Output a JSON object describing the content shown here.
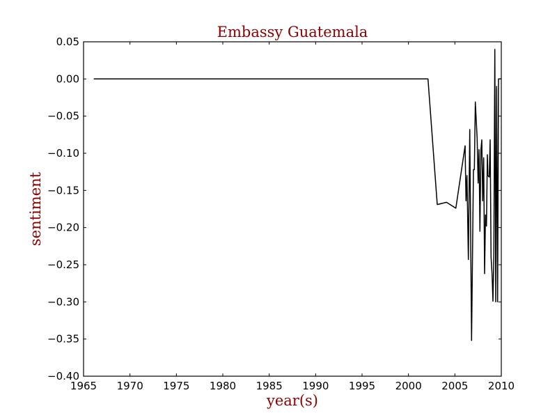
{
  "colors": {
    "title": "#8b0000",
    "axis_label": "#8b0000",
    "line": "#000000",
    "axes": "#000000",
    "background": "#ffffff"
  },
  "chart_data": {
    "type": "line",
    "title": "Embassy Guatemala",
    "xlabel": "year(s)",
    "ylabel": "sentiment",
    "xlim": [
      1965,
      2010
    ],
    "ylim": [
      -0.4,
      0.05
    ],
    "grid": false,
    "x_ticks": [
      1965,
      1970,
      1975,
      1980,
      1985,
      1990,
      1995,
      2000,
      2005,
      2010
    ],
    "x_tick_labels": [
      "1965",
      "1970",
      "1975",
      "1980",
      "1985",
      "1990",
      "1995",
      "2000",
      "2005",
      "2010"
    ],
    "y_ticks": [
      0.05,
      0.0,
      -0.05,
      -0.1,
      -0.15,
      -0.2,
      -0.25,
      -0.3,
      -0.35,
      -0.4
    ],
    "y_tick_labels": [
      "0.05",
      "0.00",
      "−0.05",
      "−0.10",
      "−0.15",
      "−0.20",
      "−0.25",
      "−0.30",
      "−0.35",
      "−0.40"
    ],
    "series": [
      {
        "x": [
          1966.1,
          2002.1,
          2003.1,
          2004.1,
          2005.1,
          2006.1,
          2006.2,
          2006.3,
          2006.45,
          2006.6,
          2006.8,
          2007.0,
          2007.1,
          2007.2,
          2007.4,
          2007.5,
          2007.6,
          2007.7,
          2007.8,
          2007.9,
          2008.0,
          2008.1,
          2008.2,
          2008.3,
          2008.4,
          2008.5,
          2008.55,
          2008.7,
          2008.8,
          2008.9,
          2009.0,
          2009.1,
          2009.2,
          2009.3,
          2009.4,
          2009.5,
          2009.6,
          2009.7,
          2009.8,
          2009.9,
          2010.0
        ],
        "y": [
          0.0,
          0.0,
          -0.169,
          -0.166,
          -0.174,
          -0.09,
          -0.164,
          -0.13,
          -0.243,
          -0.068,
          -0.352,
          -0.122,
          -0.122,
          -0.031,
          -0.08,
          -0.14,
          -0.095,
          -0.205,
          -0.096,
          -0.082,
          -0.164,
          -0.106,
          -0.262,
          -0.183,
          -0.198,
          -0.102,
          -0.13,
          -0.132,
          -0.082,
          -0.24,
          -0.262,
          -0.299,
          -0.237,
          0.04,
          -0.3,
          -0.01,
          -0.3,
          0.0,
          0.0,
          0.0,
          0.0
        ]
      }
    ]
  }
}
